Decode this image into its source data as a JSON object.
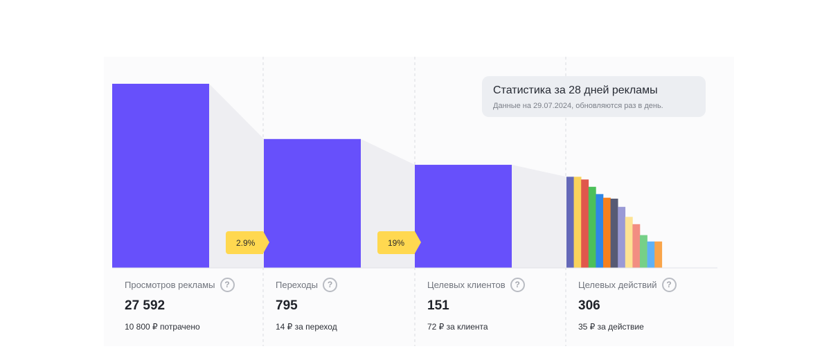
{
  "info": {
    "title": "Статистика за 28 дней рекламы",
    "subtitle": "Данные на 29.07.2024, обновляются раз в день."
  },
  "chart_data": {
    "type": "bar",
    "title": "Статистика за 28 дней рекламы",
    "categories": [
      "Просмотров рекламы",
      "Переходы",
      "Целевых клиентов",
      "Целевых действий"
    ],
    "bar_color": "#6750fb",
    "funnel_fill": "#eeeef2",
    "relative_heights": [
      1.0,
      0.7,
      0.56,
      0.495
    ],
    "conversions": [
      "2.9%",
      "19%"
    ],
    "target_actions_breakdown": {
      "relative_heights": [
        1.0,
        1.0,
        0.97,
        0.89,
        0.81,
        0.77,
        0.76,
        0.67,
        0.56,
        0.48,
        0.36,
        0.29,
        0.29
      ],
      "colors": [
        "#6468b8",
        "#f9d25c",
        "#e0574c",
        "#4cc05a",
        "#2e86e6",
        "#f7801e",
        "#565a74",
        "#9a9ad6",
        "#fde394",
        "#f28e82",
        "#76d087",
        "#5fb1f5",
        "#f9a44a"
      ]
    }
  },
  "metrics": [
    {
      "label": "Просмотров рекламы",
      "value": "27 592",
      "note": "10 800 ₽ потрачено"
    },
    {
      "label": "Переходы",
      "value": "795",
      "note": "14 ₽ за переход"
    },
    {
      "label": "Целевых клиентов",
      "value": "151",
      "note": "72 ₽ за клиента"
    },
    {
      "label": "Целевых действий",
      "value": "306",
      "note": "35 ₽ за действие"
    }
  ],
  "help_icon": "question-circle-icon"
}
